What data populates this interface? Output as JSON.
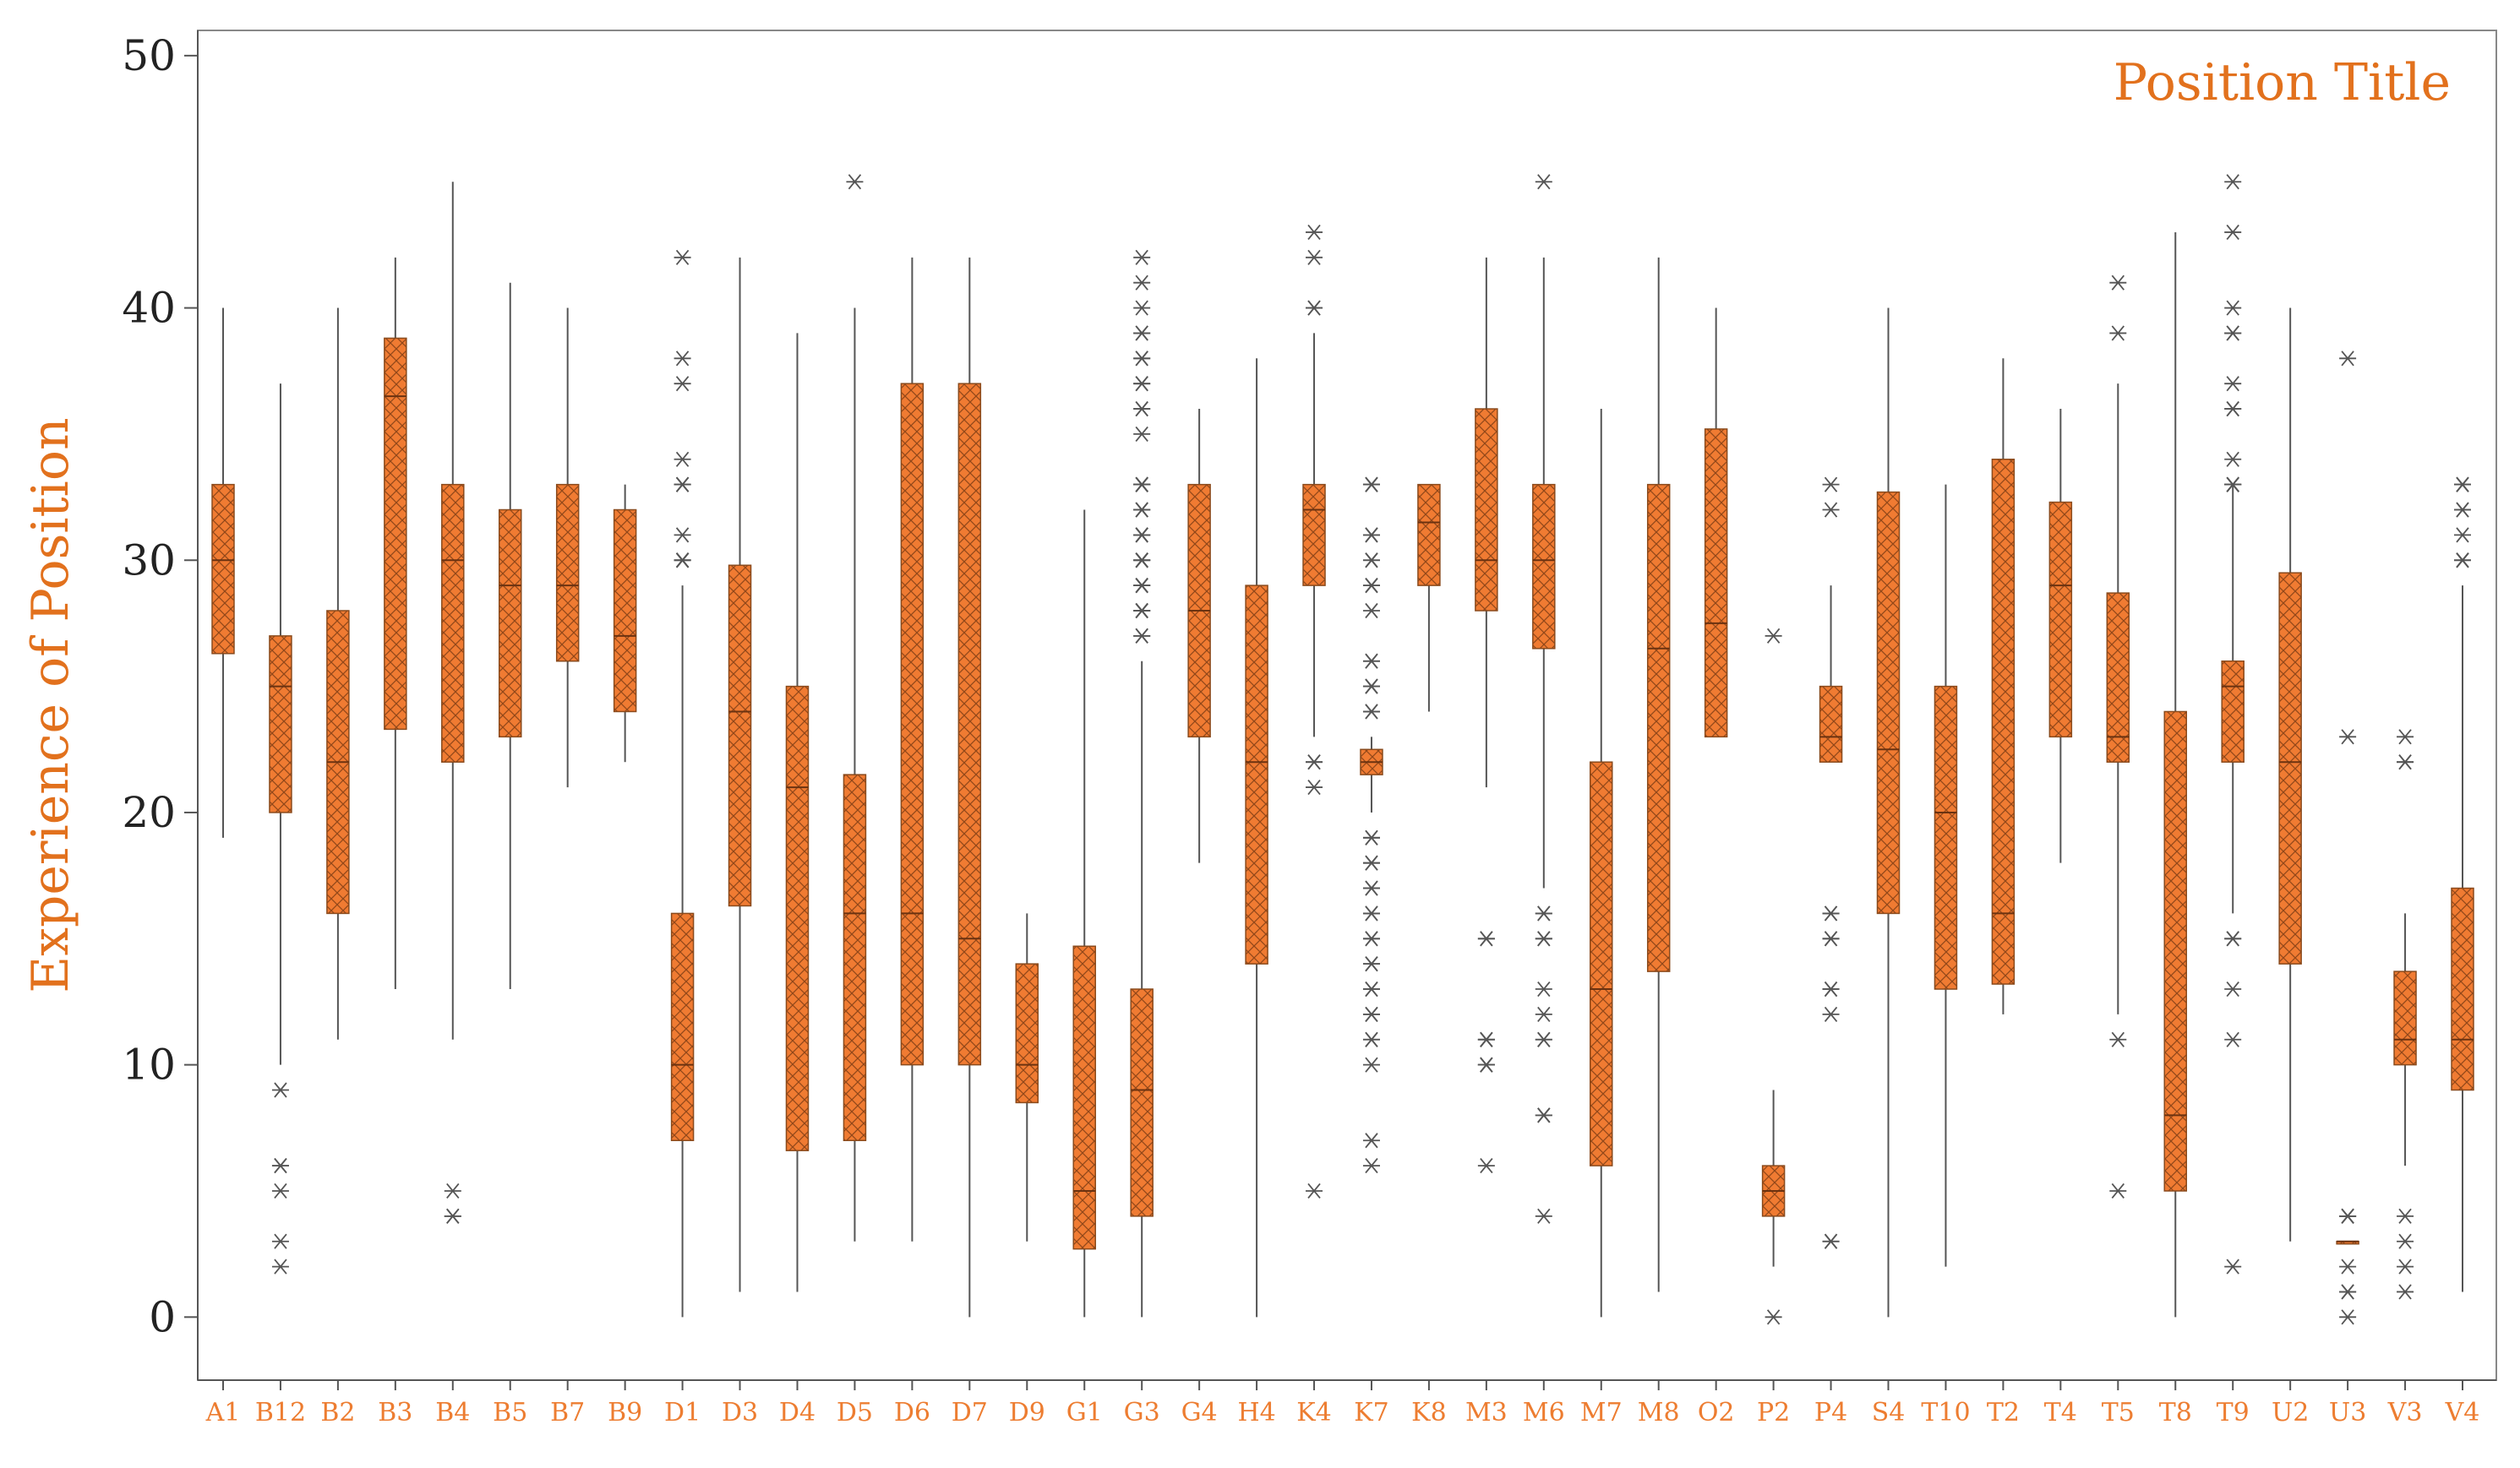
{
  "chart_data": {
    "type": "boxplot",
    "title": "",
    "legend_title": "Position Title",
    "legend_position": "top-right",
    "xlabel": "",
    "ylabel": "Experience of Position",
    "ylim": [
      -2.5,
      51
    ],
    "yticks": [
      0,
      10,
      20,
      30,
      40,
      50
    ],
    "grid": false,
    "box_color": "#F07B32",
    "hatch_color": "#7a3a12",
    "whisker_color": "#555555",
    "outlier_color": "#555555",
    "label_color": "#ED7D31",
    "categories": [
      "A1",
      "B12",
      "B2",
      "B3",
      "B4",
      "B5",
      "B7",
      "B9",
      "D1",
      "D3",
      "D4",
      "D5",
      "D6",
      "D7",
      "D9",
      "G1",
      "G3",
      "G4",
      "H4",
      "K4",
      "K7",
      "K8",
      "M3",
      "M6",
      "M7",
      "M8",
      "O2",
      "P2",
      "P4",
      "S4",
      "T10",
      "T2",
      "T4",
      "T5",
      "T8",
      "T9",
      "U2",
      "U3",
      "V3",
      "V4"
    ],
    "boxes": [
      {
        "low": 19,
        "q1": 26.3,
        "median": 30,
        "q3": 33,
        "high": 40,
        "outliers": []
      },
      {
        "low": 10,
        "q1": 20,
        "median": 25,
        "q3": 27,
        "high": 37,
        "outliers": [
          9,
          6,
          6,
          5,
          3,
          2
        ]
      },
      {
        "low": 11,
        "q1": 16,
        "median": 22,
        "q3": 28,
        "high": 40,
        "outliers": []
      },
      {
        "low": 13,
        "q1": 23.3,
        "median": 36.5,
        "q3": 38.8,
        "high": 42,
        "outliers": []
      },
      {
        "low": 11,
        "q1": 22,
        "median": 30,
        "q3": 33,
        "high": 45,
        "outliers": [
          5,
          4,
          4
        ]
      },
      {
        "low": 13,
        "q1": 23,
        "median": 29,
        "q3": 32,
        "high": 41,
        "outliers": []
      },
      {
        "low": 21,
        "q1": 26,
        "median": 29,
        "q3": 33,
        "high": 40,
        "outliers": []
      },
      {
        "low": 22,
        "q1": 24,
        "median": 27,
        "q3": 32,
        "high": 33,
        "outliers": []
      },
      {
        "low": 0,
        "q1": 7,
        "median": 10,
        "q3": 16,
        "high": 29,
        "outliers": [
          42,
          38,
          37,
          34,
          33,
          33,
          33,
          31,
          30,
          30,
          30,
          30
        ]
      },
      {
        "low": 1,
        "q1": 16.3,
        "median": 24,
        "q3": 29.8,
        "high": 42,
        "outliers": []
      },
      {
        "low": 1,
        "q1": 6.6,
        "median": 21,
        "q3": 25,
        "high": 39,
        "outliers": []
      },
      {
        "low": 3,
        "q1": 7,
        "median": 16,
        "q3": 21.5,
        "high": 40,
        "outliers": [
          45
        ]
      },
      {
        "low": 3,
        "q1": 10,
        "median": 16,
        "q3": 37,
        "high": 42,
        "outliers": []
      },
      {
        "low": 0,
        "q1": 10,
        "median": 15,
        "q3": 37,
        "high": 42,
        "outliers": []
      },
      {
        "low": 3,
        "q1": 8.5,
        "median": 10,
        "q3": 14,
        "high": 16,
        "outliers": []
      },
      {
        "low": 0,
        "q1": 2.7,
        "median": 5,
        "q3": 14.7,
        "high": 32,
        "outliers": []
      },
      {
        "low": 0,
        "q1": 4,
        "median": 9,
        "q3": 13,
        "high": 26,
        "outliers": [
          42,
          41,
          40,
          39,
          39,
          38,
          38,
          37,
          37,
          36,
          36,
          35,
          33,
          33,
          33,
          33,
          33,
          32,
          32,
          32,
          31,
          31,
          31,
          30,
          30,
          30,
          30,
          29,
          29,
          29,
          28,
          28,
          28,
          27,
          27
        ]
      },
      {
        "low": 18,
        "q1": 23,
        "median": 28,
        "q3": 33,
        "high": 36,
        "outliers": []
      },
      {
        "low": 0,
        "q1": 14,
        "median": 22,
        "q3": 29,
        "high": 38,
        "outliers": []
      },
      {
        "low": 23,
        "q1": 29,
        "median": 32,
        "q3": 33,
        "high": 39,
        "outliers": [
          43,
          42,
          40,
          40,
          22,
          22,
          21,
          5
        ]
      },
      {
        "low": 20,
        "q1": 21.5,
        "median": 22,
        "q3": 22.5,
        "high": 23,
        "outliers": [
          33,
          33,
          33,
          31,
          31,
          30,
          30,
          29,
          29,
          28,
          26,
          26,
          25,
          25,
          25,
          24,
          24,
          19,
          19,
          18,
          18,
          17,
          17,
          16,
          16,
          15,
          15,
          14,
          14,
          13,
          13,
          12,
          12,
          11,
          11,
          10,
          7,
          6
        ]
      },
      {
        "low": 24,
        "q1": 29,
        "median": 31.5,
        "q3": 33,
        "high": 33,
        "outliers": []
      },
      {
        "low": 21,
        "q1": 28,
        "median": 30,
        "q3": 36,
        "high": 42,
        "outliers": [
          15,
          15,
          11,
          11,
          11,
          10,
          10,
          10,
          6
        ]
      },
      {
        "low": 17,
        "q1": 26.5,
        "median": 30,
        "q3": 33,
        "high": 42,
        "outliers": [
          45,
          16,
          16,
          15,
          15,
          13,
          12,
          11,
          11,
          8,
          8,
          4
        ]
      },
      {
        "low": 0,
        "q1": 6,
        "median": 13,
        "q3": 22,
        "high": 36,
        "outliers": []
      },
      {
        "low": 1,
        "q1": 13.7,
        "median": 26.5,
        "q3": 33,
        "high": 42,
        "outliers": []
      },
      {
        "low": 23,
        "q1": 23,
        "median": 27.5,
        "q3": 35.2,
        "high": 40,
        "outliers": []
      },
      {
        "low": 2,
        "q1": 4,
        "median": 5,
        "q3": 6,
        "high": 9,
        "outliers": [
          27,
          0
        ]
      },
      {
        "low": 22,
        "q1": 22,
        "median": 23,
        "q3": 25,
        "high": 29,
        "outliers": [
          33,
          32,
          16,
          16,
          15,
          15,
          13,
          13,
          12,
          3,
          3
        ]
      },
      {
        "low": 0,
        "q1": 16,
        "median": 22.5,
        "q3": 32.7,
        "high": 40,
        "outliers": []
      },
      {
        "low": 2,
        "q1": 13,
        "median": 20,
        "q3": 25,
        "high": 33,
        "outliers": []
      },
      {
        "low": 12,
        "q1": 13.2,
        "median": 16,
        "q3": 34,
        "high": 38,
        "outliers": []
      },
      {
        "low": 18,
        "q1": 23,
        "median": 29,
        "q3": 32.3,
        "high": 36,
        "outliers": []
      },
      {
        "low": 12,
        "q1": 22,
        "median": 23,
        "q3": 28.7,
        "high": 37,
        "outliers": [
          41,
          39,
          11,
          5
        ]
      },
      {
        "low": 0,
        "q1": 5,
        "median": 8,
        "q3": 24,
        "high": 43,
        "outliers": []
      },
      {
        "low": 16,
        "q1": 22,
        "median": 25,
        "q3": 26,
        "high": 33,
        "outliers": [
          45,
          43,
          40,
          39,
          39,
          37,
          36,
          36,
          34,
          33,
          33,
          33,
          33,
          15,
          15,
          13,
          11,
          2
        ]
      },
      {
        "low": 3,
        "q1": 14,
        "median": 22,
        "q3": 29.5,
        "high": 40,
        "outliers": []
      },
      {
        "low": 3,
        "q1": 3,
        "median": 3,
        "q3": 3,
        "high": 3,
        "outliers": [
          38,
          23,
          4,
          4,
          4,
          2,
          1,
          1,
          0
        ]
      },
      {
        "low": 6,
        "q1": 10,
        "median": 11,
        "q3": 13.7,
        "high": 16,
        "outliers": [
          23,
          22,
          22,
          4,
          3,
          2,
          1
        ]
      },
      {
        "low": 1,
        "q1": 9,
        "median": 11,
        "q3": 17,
        "high": 29,
        "outliers": [
          33,
          33,
          33,
          32,
          32,
          31,
          30,
          30,
          30
        ]
      }
    ]
  }
}
